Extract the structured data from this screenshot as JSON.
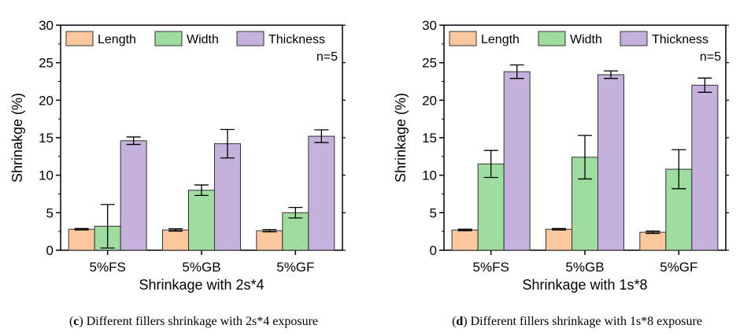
{
  "chart_data": [
    {
      "type": "bar",
      "panel_label": "c",
      "caption": "Different fillers shrinkage with 2s*4 exposure",
      "title": "",
      "xlabel": "Shrinkage with 2s*4",
      "ylabel": "Shrinakge (%)",
      "ylim": [
        0,
        30
      ],
      "yticks": [
        0,
        5,
        10,
        15,
        20,
        25,
        30
      ],
      "categories": [
        "5%FS",
        "5%GB",
        "5%GF"
      ],
      "annotation": "n=5",
      "legend_position": "top",
      "series": [
        {
          "name": "Length",
          "color": "#fbc89d",
          "values": [
            2.8,
            2.7,
            2.6
          ],
          "errors": [
            0.1,
            0.15,
            0.15
          ]
        },
        {
          "name": "Width",
          "color": "#9fdc9f",
          "values": [
            3.2,
            8.0,
            5.0
          ],
          "errors": [
            2.9,
            0.7,
            0.7
          ]
        },
        {
          "name": "Thickness",
          "color": "#c4b2dc",
          "values": [
            14.6,
            14.2,
            15.2
          ],
          "errors": [
            0.5,
            1.9,
            0.85
          ]
        }
      ]
    },
    {
      "type": "bar",
      "panel_label": "d",
      "caption": "Different fillers shrinkage with 1s*8 exposure",
      "title": "",
      "xlabel": "Shrinkage with 1s*8",
      "ylabel": "Shrinkage (%)",
      "ylim": [
        0,
        30
      ],
      "yticks": [
        0,
        5,
        10,
        15,
        20,
        25,
        30
      ],
      "categories": [
        "5%FS",
        "5%GB",
        "5%GF"
      ],
      "annotation": "n=5",
      "legend_position": "top",
      "series": [
        {
          "name": "Length",
          "color": "#fbc89d",
          "values": [
            2.7,
            2.8,
            2.4
          ],
          "errors": [
            0.1,
            0.1,
            0.15
          ]
        },
        {
          "name": "Width",
          "color": "#9fdc9f",
          "values": [
            11.5,
            12.4,
            10.8
          ],
          "errors": [
            1.8,
            2.9,
            2.6
          ]
        },
        {
          "name": "Thickness",
          "color": "#c4b2dc",
          "values": [
            23.8,
            23.4,
            22.0
          ],
          "errors": [
            0.9,
            0.5,
            0.95
          ]
        }
      ]
    }
  ]
}
